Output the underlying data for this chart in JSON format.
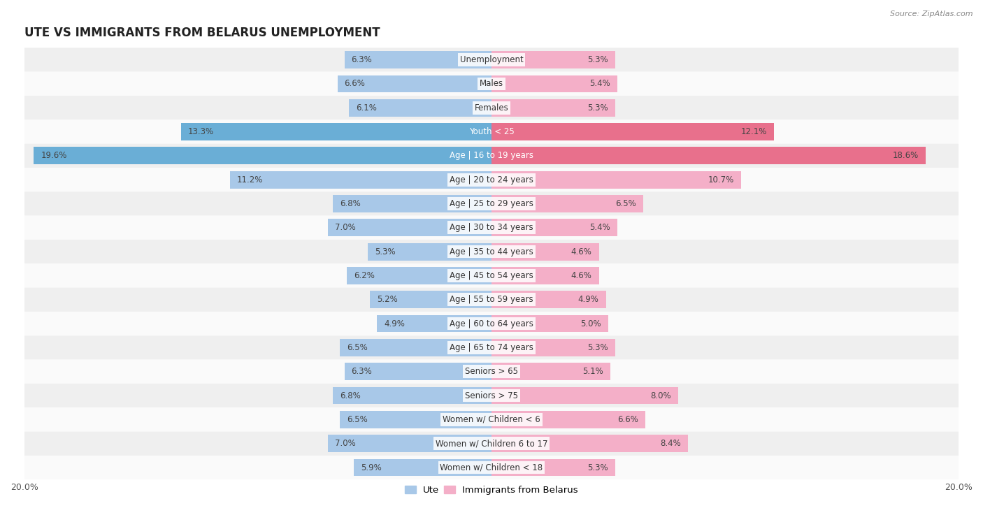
{
  "title": "UTE VS IMMIGRANTS FROM BELARUS UNEMPLOYMENT",
  "source": "Source: ZipAtlas.com",
  "categories": [
    "Unemployment",
    "Males",
    "Females",
    "Youth < 25",
    "Age | 16 to 19 years",
    "Age | 20 to 24 years",
    "Age | 25 to 29 years",
    "Age | 30 to 34 years",
    "Age | 35 to 44 years",
    "Age | 45 to 54 years",
    "Age | 55 to 59 years",
    "Age | 60 to 64 years",
    "Age | 65 to 74 years",
    "Seniors > 65",
    "Seniors > 75",
    "Women w/ Children < 6",
    "Women w/ Children 6 to 17",
    "Women w/ Children < 18"
  ],
  "ute_values": [
    6.3,
    6.6,
    6.1,
    13.3,
    19.6,
    11.2,
    6.8,
    7.0,
    5.3,
    6.2,
    5.2,
    4.9,
    6.5,
    6.3,
    6.8,
    6.5,
    7.0,
    5.9
  ],
  "belarus_values": [
    5.3,
    5.4,
    5.3,
    12.1,
    18.6,
    10.7,
    6.5,
    5.4,
    4.6,
    4.6,
    4.9,
    5.0,
    5.3,
    5.1,
    8.0,
    6.6,
    8.4,
    5.3
  ],
  "ute_color": "#a8c8e8",
  "belarus_color": "#f4afc8",
  "ute_highlight_color": "#6aaed6",
  "belarus_highlight_color": "#e8708c",
  "highlight_rows": [
    3,
    4
  ],
  "background_color": "#ffffff",
  "row_alt_color": "#efefef",
  "row_main_color": "#fafafa",
  "xlim": 20.0,
  "legend_ute": "Ute",
  "legend_belarus": "Immigrants from Belarus",
  "title_fontsize": 12,
  "label_fontsize": 8.5,
  "value_fontsize": 8.5,
  "bar_height": 0.72
}
